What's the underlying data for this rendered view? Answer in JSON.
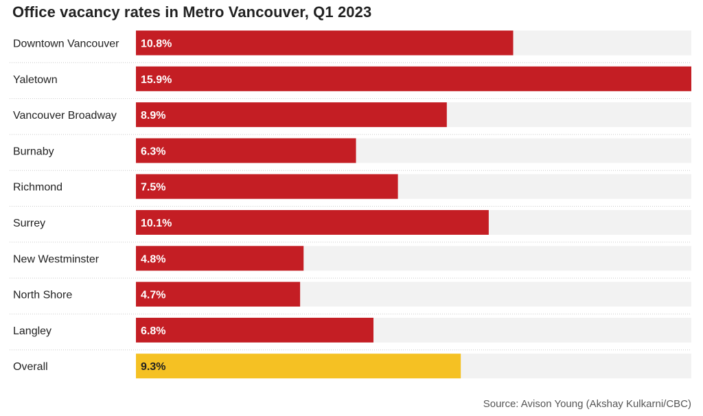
{
  "chart_data": {
    "type": "bar",
    "orientation": "horizontal",
    "title": "Office vacancy rates in Metro Vancouver, Q1 2023",
    "source": "Source: Avison Young (Akshay Kulkarni/CBC)",
    "categories": [
      "Downtown Vancouver",
      "Yaletown",
      "Vancouver Broadway",
      "Burnaby",
      "Richmond",
      "Surrey",
      "New Westminster",
      "North Shore",
      "Langley",
      "Overall"
    ],
    "values": [
      10.8,
      15.9,
      8.9,
      6.3,
      7.5,
      10.1,
      4.8,
      4.7,
      6.8,
      9.3
    ],
    "value_labels": [
      "10.8%",
      "15.9%",
      "8.9%",
      "6.3%",
      "7.5%",
      "10.1%",
      "4.8%",
      "4.7%",
      "6.8%",
      "9.3%"
    ],
    "xlim": [
      0,
      15.9
    ],
    "unit": "%",
    "grid": false,
    "colors": {
      "bar": "#c41e24",
      "highlight": "#f5c123",
      "track": "#f2f2f2",
      "separator": "#c9c9c9",
      "label_on_bar": "#ffffff",
      "label_on_highlight": "#222222"
    },
    "highlight_category": "Overall"
  }
}
